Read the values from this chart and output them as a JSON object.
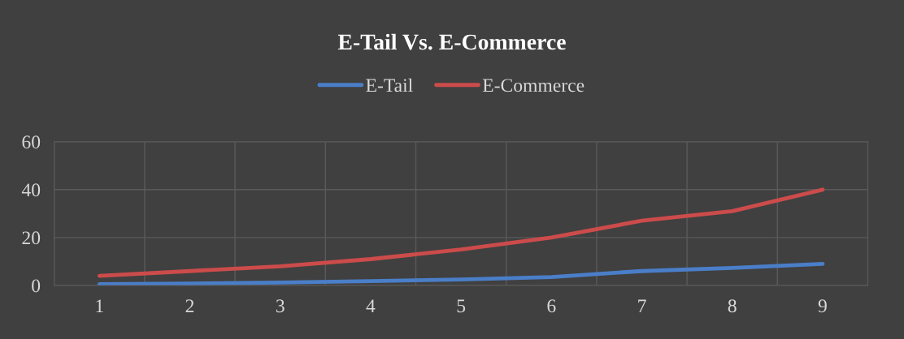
{
  "chart_data": {
    "type": "line",
    "title": "E-Tail Vs. E-Commerce",
    "categories": [
      "1",
      "2",
      "3",
      "4",
      "5",
      "6",
      "7",
      "8",
      "9"
    ],
    "series": [
      {
        "name": "E-Tail",
        "color": "#4a7ec8",
        "values": [
          0.5,
          0.8,
          1.2,
          1.8,
          2.5,
          3.5,
          6,
          7.3,
          9
        ]
      },
      {
        "name": "E-Commerce",
        "color": "#cc4b4b",
        "values": [
          4,
          6,
          8,
          11,
          15,
          20,
          27,
          31,
          40
        ]
      }
    ],
    "ylim": [
      0,
      60
    ],
    "yticks": [
      0,
      20,
      40,
      60
    ],
    "grid": true,
    "legend": "top",
    "marker": "none",
    "line_style": "solid"
  }
}
